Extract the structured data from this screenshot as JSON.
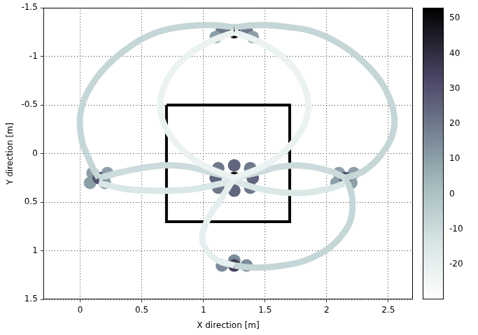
{
  "chart_data": {
    "type": "scatter",
    "x_label": "X direction [m]",
    "y_label": "Y direction [m]",
    "xlim": [
      -0.3,
      2.7
    ],
    "xticks": [
      0,
      0.5,
      1,
      1.5,
      2,
      2.5
    ],
    "ylim": [
      1.5,
      -1.5
    ],
    "yticks": [
      -1.5,
      -1,
      -0.5,
      0,
      0.5,
      1,
      1.5
    ],
    "grid": true,
    "colorbar": {
      "range": [
        -30,
        53
      ],
      "ticks": [
        -20,
        -10,
        0,
        10,
        20,
        30,
        40,
        50
      ]
    },
    "series": [
      {
        "line_style": "solid",
        "intensity": -22,
        "x": [
          1.25,
          1.05,
          0.88,
          0.75,
          0.67,
          0.65,
          0.7,
          0.82,
          1.0,
          1.25
        ],
        "values": [
          -1.25,
          -1.15,
          -1.02,
          -0.85,
          -0.65,
          -0.45,
          -0.25,
          -0.05,
          0.12,
          0.25
        ]
      },
      {
        "line_style": "solid",
        "intensity": -22,
        "x": [
          1.25,
          1.45,
          1.62,
          1.75,
          1.83,
          1.85,
          1.8,
          1.68,
          1.5,
          1.25
        ],
        "values": [
          -1.25,
          -1.15,
          -1.02,
          -0.85,
          -0.65,
          -0.45,
          -0.25,
          -0.05,
          0.12,
          0.25
        ]
      },
      {
        "line_style": "solid",
        "intensity": -20,
        "x": [
          1.25,
          1.12,
          1.03,
          0.99,
          1.01,
          1.07,
          1.15,
          1.25
        ],
        "values": [
          1.15,
          1.1,
          1.0,
          0.88,
          0.75,
          0.6,
          0.45,
          0.25
        ]
      },
      {
        "line_style": "solid",
        "intensity": -15,
        "x": [
          0.15,
          0.35,
          0.55,
          0.75,
          0.95,
          1.1,
          1.25
        ],
        "values": [
          0.3,
          0.36,
          0.38,
          0.38,
          0.36,
          0.32,
          0.28
        ]
      },
      {
        "line_style": "solid",
        "intensity": -15,
        "x": [
          1.25,
          1.45,
          1.65,
          1.85,
          2.05,
          2.15
        ],
        "values": [
          0.28,
          0.36,
          0.4,
          0.4,
          0.35,
          0.3
        ]
      },
      {
        "line_style": "solid",
        "intensity": -8,
        "x": [
          1.25,
          1.1,
          0.95,
          0.8,
          0.65,
          0.5,
          0.38,
          0.27,
          0.17,
          0.09,
          0.03,
          0.0,
          0.0,
          0.02,
          0.06,
          0.1,
          0.15
        ],
        "values": [
          -1.3,
          -1.32,
          -1.32,
          -1.3,
          -1.26,
          -1.18,
          -1.08,
          -0.97,
          -0.84,
          -0.7,
          -0.55,
          -0.4,
          -0.25,
          -0.1,
          0.02,
          0.14,
          0.25
        ]
      },
      {
        "line_style": "solid",
        "intensity": -8,
        "x": [
          1.25,
          1.4,
          1.55,
          1.7,
          1.85,
          2.0,
          2.13,
          2.25,
          2.35,
          2.44,
          2.5,
          2.54,
          2.55,
          2.52,
          2.46,
          2.38,
          2.27,
          2.15
        ],
        "values": [
          -1.3,
          -1.32,
          -1.32,
          -1.3,
          -1.27,
          -1.2,
          -1.11,
          -1.0,
          -0.88,
          -0.74,
          -0.6,
          -0.45,
          -0.3,
          -0.15,
          -0.02,
          0.1,
          0.2,
          0.25
        ]
      },
      {
        "line_style": "solid",
        "intensity": -10,
        "x": [
          0.15,
          0.3,
          0.45,
          0.6,
          0.75,
          0.9,
          1.05,
          1.25
        ],
        "values": [
          0.25,
          0.2,
          0.16,
          0.13,
          0.12,
          0.14,
          0.19,
          0.25
        ]
      },
      {
        "line_style": "solid",
        "intensity": -10,
        "x": [
          1.25,
          1.45,
          1.6,
          1.75,
          1.9,
          2.05,
          2.15
        ],
        "values": [
          0.25,
          0.19,
          0.14,
          0.12,
          0.14,
          0.19,
          0.25
        ]
      },
      {
        "line_style": "solid",
        "intensity": -8,
        "x": [
          2.15,
          2.2,
          2.21,
          2.19,
          2.13,
          2.04,
          1.93,
          1.8,
          1.65,
          1.5,
          1.37,
          1.25
        ],
        "values": [
          0.25,
          0.4,
          0.55,
          0.7,
          0.83,
          0.95,
          1.04,
          1.11,
          1.15,
          1.17,
          1.17,
          1.15
        ]
      },
      {
        "marker": "circle",
        "x": [
          1.15,
          1.35,
          1.1,
          1.4,
          0.1,
          0.2,
          0.22,
          0.08,
          2.1,
          2.2,
          2.22,
          2.08,
          1.12,
          1.38,
          1.12,
          1.38,
          1.25,
          1.25,
          1.1,
          1.4,
          1.15,
          1.35,
          1.25,
          1.25,
          0.15,
          2.15,
          1.25,
          1.25
        ],
        "values": [
          -1.27,
          -1.27,
          -1.2,
          -1.2,
          0.2,
          0.3,
          0.2,
          0.3,
          0.2,
          0.3,
          0.2,
          0.3,
          0.15,
          0.15,
          0.35,
          0.35,
          0.12,
          0.38,
          0.25,
          0.25,
          1.15,
          1.15,
          1.1,
          -1.25,
          0.25,
          0.25,
          0.25,
          1.15
        ],
        "intensity": [
          20,
          20,
          10,
          10,
          10,
          10,
          10,
          10,
          10,
          10,
          10,
          10,
          20,
          20,
          20,
          20,
          25,
          25,
          25,
          25,
          15,
          15,
          15,
          50,
          30,
          30,
          50,
          35
        ]
      }
    ],
    "rectangle": {
      "x": [
        0.7,
        1.7
      ],
      "y": [
        -0.5,
        0.7
      ]
    }
  }
}
